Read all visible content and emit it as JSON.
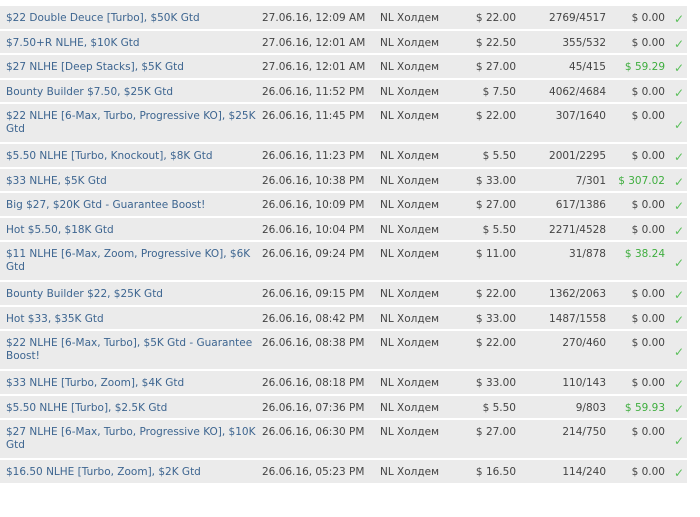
{
  "colors": {
    "link": "#3d6590",
    "win": "#3fae3f",
    "row_bg": "#ebebeb"
  },
  "rows": [
    {
      "name": "$22 Double Deuce [Turbo], $50K Gtd",
      "date": "27.06.16, 12:09 AM",
      "type": "NL Холдем",
      "buyin": "$ 22.00",
      "entries": "2769/4517",
      "prize": "$ 0.00",
      "status": "check-icon"
    },
    {
      "name": "$7.50+R NLHE, $10K Gtd",
      "date": "27.06.16, 12:01 AM",
      "type": "NL Холдем",
      "buyin": "$ 22.50",
      "entries": "355/532",
      "prize": "$ 0.00",
      "status": "check-icon"
    },
    {
      "name": "$27 NLHE [Deep Stacks], $5K Gtd",
      "date": "27.06.16, 12:01 AM",
      "type": "NL Холдем",
      "buyin": "$ 27.00",
      "entries": "45/415",
      "prize": "$ 59.29",
      "status": "check-icon"
    },
    {
      "name": "Bounty Builder $7.50, $25K Gtd",
      "date": "26.06.16, 11:52 PM",
      "type": "NL Холдем",
      "buyin": "$ 7.50",
      "entries": "4062/4684",
      "prize": "$ 0.00",
      "status": "check-icon"
    },
    {
      "name": "$22 NLHE [6-Max, Turbo, Progressive KO], $25K Gtd",
      "date": "26.06.16, 11:45 PM",
      "type": "NL Холдем",
      "buyin": "$ 22.00",
      "entries": "307/1640",
      "prize": "$ 0.00",
      "status": "check-icon"
    },
    {
      "name": "$5.50 NLHE [Turbo, Knockout], $8K Gtd",
      "date": "26.06.16, 11:23 PM",
      "type": "NL Холдем",
      "buyin": "$ 5.50",
      "entries": "2001/2295",
      "prize": "$ 0.00",
      "status": "check-icon"
    },
    {
      "name": "$33 NLHE, $5K Gtd",
      "date": "26.06.16, 10:38 PM",
      "type": "NL Холдем",
      "buyin": "$ 33.00",
      "entries": "7/301",
      "prize": "$ 307.02",
      "status": "check-icon"
    },
    {
      "name": "Big $27, $20K Gtd - Guarantee Boost!",
      "date": "26.06.16, 10:09 PM",
      "type": "NL Холдем",
      "buyin": "$ 27.00",
      "entries": "617/1386",
      "prize": "$ 0.00",
      "status": "check-icon"
    },
    {
      "name": "Hot $5.50, $18K Gtd",
      "date": "26.06.16, 10:04 PM",
      "type": "NL Холдем",
      "buyin": "$ 5.50",
      "entries": "2271/4528",
      "prize": "$ 0.00",
      "status": "check-icon"
    },
    {
      "name": "$11 NLHE [6-Max, Zoom, Progressive KO], $6K Gtd",
      "date": "26.06.16, 09:24 PM",
      "type": "NL Холдем",
      "buyin": "$ 11.00",
      "entries": "31/878",
      "prize": "$ 38.24",
      "status": "check-icon"
    },
    {
      "name": "Bounty Builder $22, $25K Gtd",
      "date": "26.06.16, 09:15 PM",
      "type": "NL Холдем",
      "buyin": "$ 22.00",
      "entries": "1362/2063",
      "prize": "$ 0.00",
      "status": "check-icon"
    },
    {
      "name": "Hot $33, $35K Gtd",
      "date": "26.06.16, 08:42 PM",
      "type": "NL Холдем",
      "buyin": "$ 33.00",
      "entries": "1487/1558",
      "prize": "$ 0.00",
      "status": "check-icon"
    },
    {
      "name": "$22 NLHE [6-Max, Turbo], $5K Gtd - Guarantee Boost!",
      "date": "26.06.16, 08:38 PM",
      "type": "NL Холдем",
      "buyin": "$ 22.00",
      "entries": "270/460",
      "prize": "$ 0.00",
      "status": "check-icon"
    },
    {
      "name": "$33 NLHE [Turbo, Zoom], $4K Gtd",
      "date": "26.06.16, 08:18 PM",
      "type": "NL Холдем",
      "buyin": "$ 33.00",
      "entries": "110/143",
      "prize": "$ 0.00",
      "status": "check-icon"
    },
    {
      "name": "$5.50 NLHE [Turbo], $2.5K Gtd",
      "date": "26.06.16, 07:36 PM",
      "type": "NL Холдем",
      "buyin": "$ 5.50",
      "entries": "9/803",
      "prize": "$ 59.93",
      "status": "check-icon"
    },
    {
      "name": "$27 NLHE [6-Max, Turbo, Progressive KO], $10K Gtd",
      "date": "26.06.16, 06:30 PM",
      "type": "NL Холдем",
      "buyin": "$ 27.00",
      "entries": "214/750",
      "prize": "$ 0.00",
      "status": "check-icon"
    },
    {
      "name": "$16.50 NLHE [Turbo, Zoom], $2K Gtd",
      "date": "26.06.16, 05:23 PM",
      "type": "NL Холдем",
      "buyin": "$ 16.50",
      "entries": "114/240",
      "prize": "$ 0.00",
      "status": "check-icon"
    }
  ]
}
